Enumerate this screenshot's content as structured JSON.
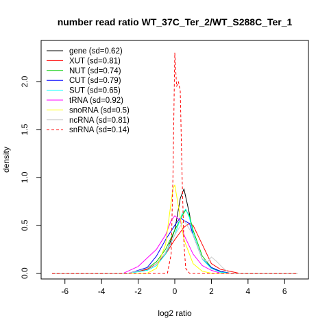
{
  "chart_data": {
    "type": "line",
    "title": "number read ratio WT_37C_Ter_2/WT_S288C_Ter_1",
    "xlabel": "log2 ratio",
    "ylabel": "density",
    "xlim": [
      -7.3,
      7.3
    ],
    "ylim": [
      -0.06,
      2.43
    ],
    "x_ticks": [
      -6,
      -4,
      -2,
      0,
      2,
      4,
      6
    ],
    "y_ticks": [
      0.0,
      0.5,
      1.0,
      1.5,
      2.0
    ],
    "x_tick_labels": [
      "-6",
      "-4",
      "-2",
      "0",
      "2",
      "4",
      "6"
    ],
    "y_tick_labels": [
      "0.0",
      "0.5",
      "1.0",
      "1.5",
      "2.0"
    ],
    "grid": false,
    "legend_position": "top-left",
    "series": [
      {
        "name": "gene (sd=0.62)",
        "color": "#000000",
        "dashed": false,
        "x": [
          -6.7,
          -2.5,
          -1.5,
          -1.0,
          -0.5,
          0.0,
          0.3,
          0.5,
          0.8,
          1.0,
          1.5,
          2.0,
          2.5,
          3.0,
          6.7
        ],
        "y": [
          0,
          0,
          0.04,
          0.1,
          0.2,
          0.45,
          0.78,
          0.88,
          0.62,
          0.4,
          0.15,
          0.05,
          0.02,
          0,
          0
        ]
      },
      {
        "name": "XUT (sd=0.81)",
        "color": "#ff0000",
        "dashed": false,
        "x": [
          -6.7,
          -2.5,
          -1.5,
          -1.0,
          -0.5,
          0.0,
          0.5,
          0.8,
          1.0,
          1.5,
          2.0,
          2.5,
          3.0,
          3.5,
          6.7
        ],
        "y": [
          0,
          0,
          0.04,
          0.1,
          0.2,
          0.35,
          0.48,
          0.52,
          0.5,
          0.3,
          0.1,
          0.04,
          0.02,
          0,
          0
        ]
      },
      {
        "name": "NUT (sd=0.74)",
        "color": "#00cc00",
        "dashed": false,
        "x": [
          -6.7,
          -2.5,
          -1.5,
          -1.0,
          -0.5,
          0.0,
          0.4,
          0.6,
          0.8,
          1.0,
          1.5,
          2.0,
          2.5,
          3.0,
          6.7
        ],
        "y": [
          0,
          0,
          0.05,
          0.12,
          0.25,
          0.45,
          0.6,
          0.66,
          0.6,
          0.45,
          0.18,
          0.06,
          0.02,
          0,
          0
        ]
      },
      {
        "name": "CUT (sd=0.79)",
        "color": "#0000ff",
        "dashed": false,
        "x": [
          -6.7,
          -2.5,
          -1.5,
          -1.0,
          -0.5,
          0.0,
          0.3,
          0.5,
          0.8,
          1.0,
          1.5,
          2.0,
          2.5,
          3.0,
          6.7
        ],
        "y": [
          0,
          0,
          0.06,
          0.18,
          0.35,
          0.5,
          0.58,
          0.55,
          0.52,
          0.4,
          0.15,
          0.06,
          0.02,
          0,
          0
        ]
      },
      {
        "name": "SUT (sd=0.65)",
        "color": "#00ffff",
        "dashed": false,
        "x": [
          -6.7,
          -2.5,
          -1.5,
          -1.0,
          -0.5,
          0.0,
          0.4,
          0.6,
          0.8,
          1.0,
          1.5,
          2.0,
          2.5,
          3.0,
          6.7
        ],
        "y": [
          0,
          0,
          0.03,
          0.08,
          0.2,
          0.4,
          0.62,
          0.67,
          0.58,
          0.42,
          0.15,
          0.05,
          0.01,
          0,
          0
        ]
      },
      {
        "name": "tRNA (sd=0.92)",
        "color": "#ff00ff",
        "dashed": false,
        "x": [
          -6.7,
          -2.8,
          -2.0,
          -1.5,
          -1.0,
          -0.5,
          -0.2,
          0.0,
          0.3,
          0.5,
          1.0,
          1.5,
          2.0,
          2.5,
          6.7
        ],
        "y": [
          0,
          0,
          0.07,
          0.16,
          0.25,
          0.4,
          0.55,
          0.6,
          0.55,
          0.4,
          0.2,
          0.08,
          0.03,
          0,
          0
        ]
      },
      {
        "name": "snoRNA (sd=0.5)",
        "color": "#ffff00",
        "dashed": false,
        "x": [
          -6.7,
          -1.5,
          -1.0,
          -0.5,
          -0.3,
          -0.1,
          0.0,
          0.2,
          0.5,
          1.0,
          1.5,
          2.0,
          6.7
        ],
        "y": [
          0,
          0,
          0.05,
          0.3,
          0.6,
          0.88,
          0.92,
          0.7,
          0.35,
          0.1,
          0.02,
          0,
          0
        ]
      },
      {
        "name": "ncRNA (sd=0.81)",
        "color": "#cccccc",
        "dashed": false,
        "x": [
          -6.7,
          -2.5,
          -1.5,
          -1.0,
          -0.5,
          0.0,
          0.5,
          1.0,
          1.5,
          1.8,
          2.0,
          2.3,
          2.6,
          3.0,
          6.7
        ],
        "y": [
          0,
          0,
          0.05,
          0.1,
          0.22,
          0.4,
          0.55,
          0.4,
          0.15,
          0.12,
          0.17,
          0.12,
          0.06,
          0,
          0
        ]
      },
      {
        "name": "snRNA (sd=0.14)",
        "color": "#ff0000",
        "dashed": true,
        "x": [
          -6.7,
          -0.4,
          -0.2,
          -0.1,
          0.0,
          0.1,
          0.2,
          0.3,
          0.4,
          0.5,
          0.6,
          0.8,
          6.7
        ],
        "y": [
          0,
          0,
          0.2,
          1.0,
          2.3,
          1.95,
          2.0,
          1.9,
          1.0,
          0.3,
          0.05,
          0,
          0
        ]
      }
    ]
  }
}
